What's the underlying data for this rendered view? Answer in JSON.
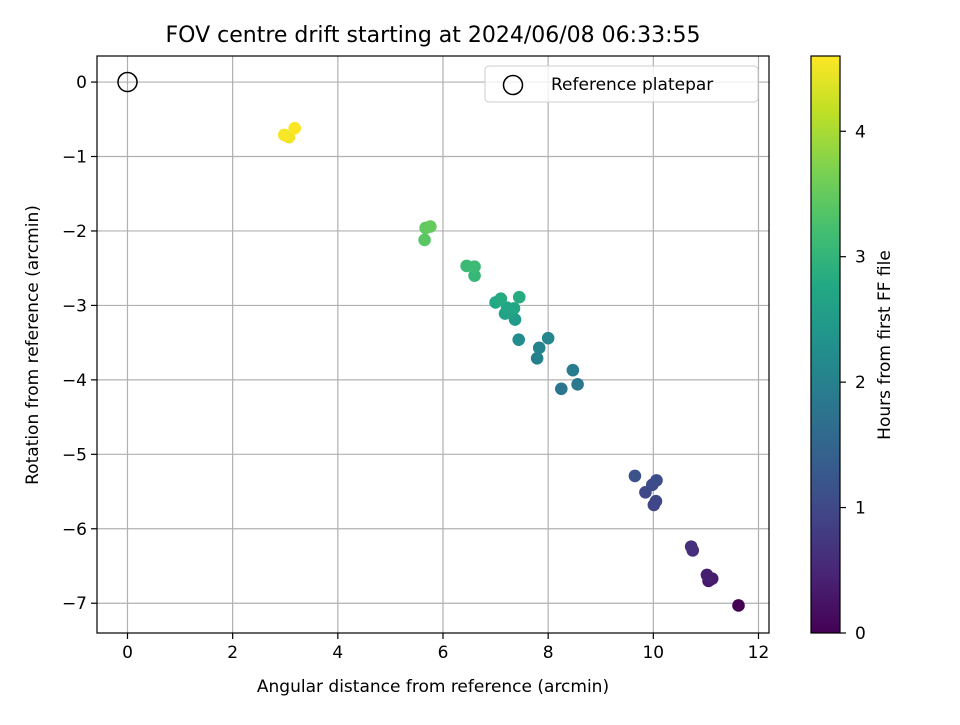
{
  "chart_data": {
    "type": "scatter",
    "title": "FOV centre drift starting at 2024/06/08 06:33:55",
    "xlabel": "Angular distance from reference (arcmin)",
    "ylabel": "Rotation from reference (arcmin)",
    "xlim": [
      -0.58,
      12.2
    ],
    "ylim": [
      -7.4,
      0.35
    ],
    "xticks": [
      0,
      2,
      4,
      6,
      8,
      10,
      12
    ],
    "yticks": [
      0,
      -1,
      -2,
      -3,
      -4,
      -5,
      -6,
      -7
    ],
    "grid": true,
    "legend": {
      "location": "upper right",
      "entries": [
        "Reference platepar"
      ]
    },
    "reference_point": {
      "x": 0,
      "y": 0,
      "label": "Reference platepar",
      "marker": "open-circle"
    },
    "colorbar": {
      "label": "Hours from first FF file",
      "colormap": "viridis",
      "range": [
        0,
        4.6
      ],
      "ticks": [
        0,
        1,
        2,
        3,
        4
      ]
    },
    "series": [
      {
        "points": [
          {
            "x": 11.62,
            "y": -7.03,
            "hours": 0.0
          },
          {
            "x": 11.05,
            "y": -6.7,
            "hours": 0.3
          },
          {
            "x": 11.12,
            "y": -6.67,
            "hours": 0.35
          },
          {
            "x": 11.02,
            "y": -6.62,
            "hours": 0.4
          },
          {
            "x": 10.75,
            "y": -6.29,
            "hours": 0.6
          },
          {
            "x": 10.72,
            "y": -6.24,
            "hours": 0.62
          },
          {
            "x": 10.01,
            "y": -5.68,
            "hours": 0.95
          },
          {
            "x": 10.05,
            "y": -5.63,
            "hours": 0.97
          },
          {
            "x": 9.85,
            "y": -5.51,
            "hours": 1.0
          },
          {
            "x": 9.98,
            "y": -5.41,
            "hours": 1.05
          },
          {
            "x": 10.06,
            "y": -5.35,
            "hours": 1.08
          },
          {
            "x": 9.65,
            "y": -5.29,
            "hours": 1.15
          },
          {
            "x": 8.25,
            "y": -4.12,
            "hours": 1.8
          },
          {
            "x": 8.56,
            "y": -4.06,
            "hours": 1.85
          },
          {
            "x": 8.47,
            "y": -3.87,
            "hours": 1.9
          },
          {
            "x": 7.79,
            "y": -3.71,
            "hours": 2.0
          },
          {
            "x": 7.83,
            "y": -3.57,
            "hours": 2.05
          },
          {
            "x": 8.0,
            "y": -3.44,
            "hours": 2.1
          },
          {
            "x": 7.44,
            "y": -3.46,
            "hours": 2.2
          },
          {
            "x": 7.37,
            "y": -3.19,
            "hours": 2.5
          },
          {
            "x": 7.3,
            "y": -3.1,
            "hours": 2.6
          },
          {
            "x": 7.18,
            "y": -3.11,
            "hours": 2.65
          },
          {
            "x": 7.35,
            "y": -3.04,
            "hours": 2.7
          },
          {
            "x": 7.22,
            "y": -3.03,
            "hours": 2.72
          },
          {
            "x": 7.0,
            "y": -2.96,
            "hours": 2.75
          },
          {
            "x": 7.1,
            "y": -2.91,
            "hours": 2.8
          },
          {
            "x": 7.45,
            "y": -2.89,
            "hours": 2.82
          },
          {
            "x": 6.6,
            "y": -2.6,
            "hours": 3.05
          },
          {
            "x": 6.45,
            "y": -2.47,
            "hours": 3.1
          },
          {
            "x": 6.6,
            "y": -2.48,
            "hours": 3.12
          },
          {
            "x": 5.65,
            "y": -2.12,
            "hours": 3.4
          },
          {
            "x": 5.67,
            "y": -1.96,
            "hours": 3.45
          },
          {
            "x": 5.76,
            "y": -1.94,
            "hours": 3.5
          },
          {
            "x": 3.07,
            "y": -0.74,
            "hours": 4.5
          },
          {
            "x": 2.98,
            "y": -0.71,
            "hours": 4.55
          },
          {
            "x": 3.18,
            "y": -0.62,
            "hours": 4.6
          }
        ]
      }
    ]
  }
}
